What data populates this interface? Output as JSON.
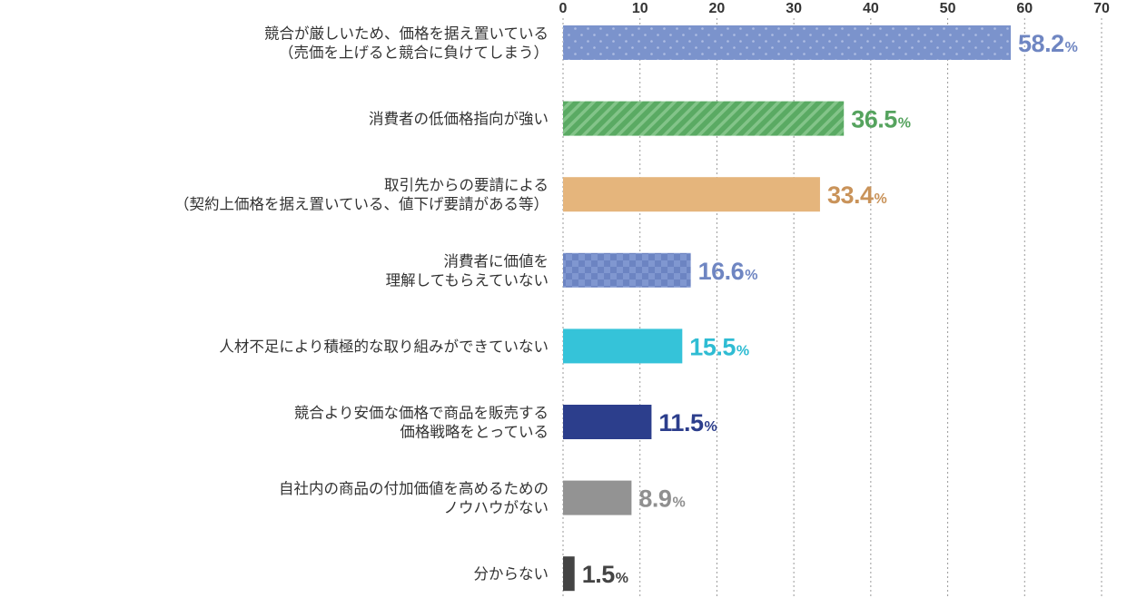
{
  "chart_data": {
    "type": "bar",
    "orientation": "horizontal",
    "xlim": [
      0,
      70
    ],
    "xticks": [
      "0",
      "10",
      "20",
      "30",
      "40",
      "50",
      "60",
      "70"
    ],
    "tick_position": "top",
    "grid": true,
    "value_unit": "%",
    "categories": [
      [
        "競合が厳しいため、価格を据え置いている",
        "（売価を上げると競合に負けてしまう）"
      ],
      [
        "消費者の低価格指向が強い"
      ],
      [
        "取引先からの要請による",
        "（契約上価格を据え置いている、値下げ要請がある等）"
      ],
      [
        "消費者に価値を",
        "理解してもらえていない"
      ],
      [
        "人材不足により積極的な取り組みができていない"
      ],
      [
        "競合より安価な価格で商品を販売する",
        "価格戦略をとっている"
      ],
      [
        "自社内の商品の付加価値を高めるための",
        "ノウハウがない"
      ],
      [
        "分からない"
      ]
    ],
    "values": [
      58.2,
      36.5,
      33.4,
      16.6,
      15.5,
      11.5,
      8.9,
      1.5
    ],
    "value_labels": [
      "58.2",
      "36.5",
      "33.4",
      "16.6",
      "15.5",
      "11.5",
      "8.9",
      "1.5"
    ],
    "bar_styles": [
      {
        "fill": "#7b93cc",
        "pattern": "dots",
        "label_color": "#6f86c2"
      },
      {
        "fill": "#5aaa63",
        "pattern": "stripes",
        "label_color": "#55a35e"
      },
      {
        "fill": "#e5b57c",
        "pattern": "none",
        "label_color": "#c9935a"
      },
      {
        "fill": "#7b93cc",
        "pattern": "checker",
        "label_color": "#6f86c2"
      },
      {
        "fill": "#35c3d9",
        "pattern": "none",
        "label_color": "#2fbcd3"
      },
      {
        "fill": "#2c3e8c",
        "pattern": "none",
        "label_color": "#2c3e8c"
      },
      {
        "fill": "#939393",
        "pattern": "none",
        "label_color": "#8f8f8f"
      },
      {
        "fill": "#444444",
        "pattern": "none",
        "label_color": "#444444"
      }
    ]
  }
}
